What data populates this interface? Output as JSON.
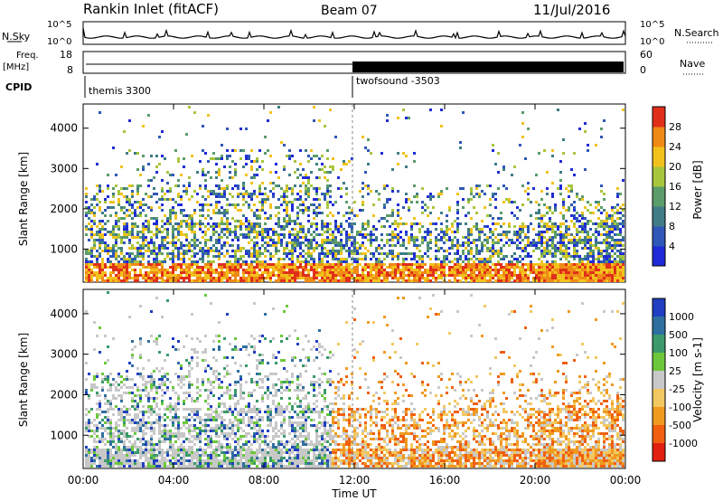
{
  "header": {
    "station": "Rankin Inlet (fitACF)",
    "beam": "Beam 07",
    "date": "11/Jul/2016"
  },
  "top_panels": {
    "noise": {
      "left_label": "N.Sky",
      "right_label": "N.Search",
      "left_ticks": [
        "10^5",
        "10^0"
      ],
      "right_ticks": [
        "10^5",
        "10^0"
      ]
    },
    "freq": {
      "left_label_1": "Freq.",
      "left_label_2": "[MHz]",
      "left_ticks": [
        "18",
        "8"
      ],
      "right_label": "Nave",
      "right_ticks": [
        "60",
        "0"
      ]
    },
    "cpid": {
      "label": "CPID",
      "segments": [
        {
          "name": "themis 3300",
          "start_hour": 0
        },
        {
          "name": "twofsound -3503",
          "start_hour": 12
        }
      ]
    }
  },
  "chart_data": [
    {
      "type": "heatmap",
      "title": "Power",
      "xlabel": "Time UT",
      "ylabel": "Slant Range [km]",
      "x_ticks": [
        "00:00",
        "04:00",
        "08:00",
        "12:00",
        "16:00",
        "20:00",
        "00:00"
      ],
      "xlim_hours": [
        0,
        24
      ],
      "y_ticks": [
        1000,
        2000,
        3000,
        4000
      ],
      "ylim": [
        180,
        4600
      ],
      "colorbar": {
        "label": "Power [dB]",
        "ticks": [
          "4",
          "8",
          "12",
          "16",
          "20",
          "24",
          "28"
        ],
        "range": [
          0,
          30
        ],
        "colors": [
          "#1f2bd6",
          "#2f57b8",
          "#3f7c86",
          "#5a9c6a",
          "#a8c63c",
          "#f2c21c",
          "#f08a16",
          "#e0301a"
        ]
      }
    },
    {
      "type": "heatmap",
      "title": "Velocity",
      "xlabel": "Time UT",
      "ylabel": "Slant Range [km]",
      "x_ticks": [
        "00:00",
        "04:00",
        "08:00",
        "12:00",
        "16:00",
        "20:00",
        "00:00"
      ],
      "xlim_hours": [
        0,
        24
      ],
      "y_ticks": [
        1000,
        2000,
        3000,
        4000
      ],
      "ylim": [
        180,
        4600
      ],
      "colorbar": {
        "label": "Velocity [m s-1]",
        "ticks": [
          "1000",
          "500",
          "100",
          "25",
          "-25",
          "-100",
          "-500",
          "-1000"
        ],
        "colors": [
          "#1f3fc0",
          "#2f6fa0",
          "#3a9a6a",
          "#6cc83a",
          "#c8c8c8",
          "#f2c860",
          "#f09a20",
          "#f06010",
          "#e02010"
        ]
      }
    }
  ],
  "x_axis_title": "Time UT"
}
